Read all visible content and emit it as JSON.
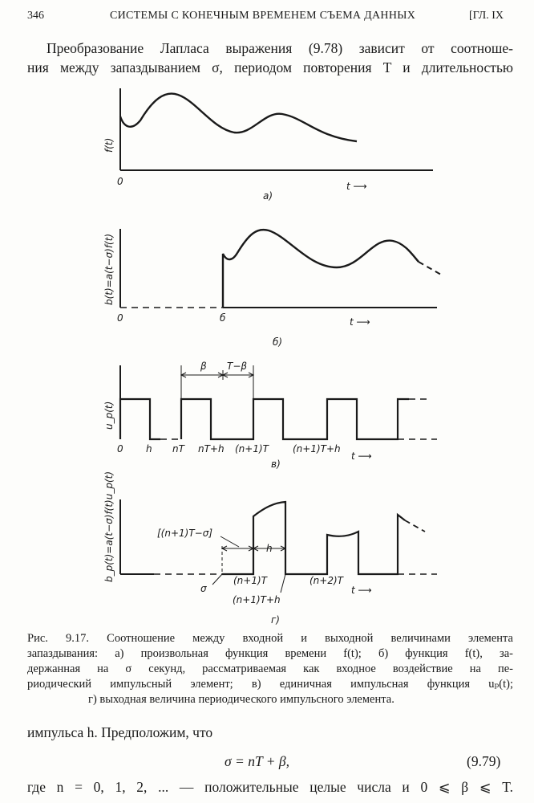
{
  "header": {
    "page_number": "346",
    "running_title": "СИСТЕМЫ С КОНЕЧНЫМ ВРЕМЕНЕМ СЪЕМА ДАННЫХ",
    "chapter": "[ГЛ. IX"
  },
  "intro": {
    "line1": "Преобразование Лапласа выражения (9.78) зависит от соотноше-",
    "line2": "ния между запаздыванием σ, периодом повторения T и длительностью"
  },
  "figure": {
    "a": {
      "ylabel": "f(t)",
      "origin": "0",
      "t_label": "t ⟶",
      "panel": "а)"
    },
    "b": {
      "ylabel": "b(t)=a(t−σ)f(t)",
      "origin": "0",
      "sigma": "б",
      "t_label": "t ⟶",
      "panel": "б)"
    },
    "c": {
      "ylabel": "u_p(t)",
      "ticks": [
        "0",
        "h",
        "nT",
        "nT+h",
        "(n+1)T",
        "(n+1)T+h"
      ],
      "beta": "β",
      "t_minus_beta": "T−β",
      "t_label": "t ⟶",
      "panel": "в)"
    },
    "d": {
      "ylabel": "b_p(t)=a(t−σ)f(t)u_p(t)",
      "bracket": "[(n+1)T−σ]",
      "h": "h",
      "sigma": "σ",
      "t1": "(n+1)T",
      "t1h": "(n+1)T+h",
      "t2": "(n+2)T",
      "t_label": "t ⟶",
      "panel": "г)"
    }
  },
  "caption": {
    "line1": "Рис. 9.17. Соотношение между входной и выходной величинами элемента",
    "line2": "запаздывания: а) произвольная функция времени f(t); б) функция f(t), за-",
    "line3": "держанная на σ секунд, рассматриваемая как входное воздействие на пе-",
    "line4": "риодический импульсный элемент; в) единичная импульсная функция uₚ(t);",
    "line5": "г) выходная величина периодического импульсного элемента."
  },
  "text2": {
    "line1": "импульса h. Предположим, что"
  },
  "equation": {
    "formula": "σ = nT + β,",
    "number": "(9.79)"
  },
  "text3": {
    "line1": "где n = 0, 1, 2, ... — положительные целые числа и 0 ⩽ β ⩽ T."
  }
}
